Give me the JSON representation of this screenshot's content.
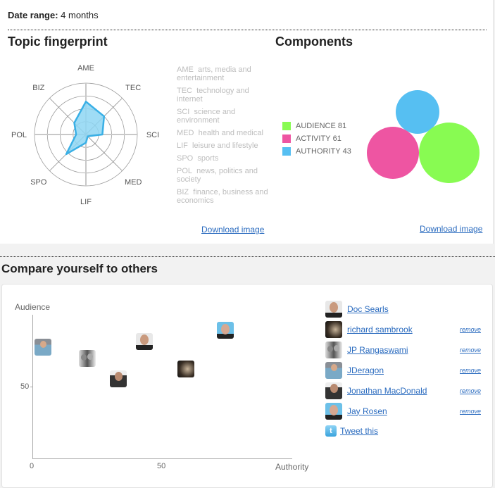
{
  "date_range": {
    "label": "Date range:",
    "value": "4 months"
  },
  "topic_fingerprint": {
    "title": "Topic fingerprint",
    "axes": [
      "AME",
      "TEC",
      "SCI",
      "MED",
      "LIF",
      "SPO",
      "POL",
      "BIZ"
    ],
    "legend": [
      {
        "code": "AME",
        "desc": "arts, media and entertainment"
      },
      {
        "code": "TEC",
        "desc": "technology and internet"
      },
      {
        "code": "SCI",
        "desc": "science and environment"
      },
      {
        "code": "MED",
        "desc": "health and medical"
      },
      {
        "code": "LIF",
        "desc": "leisure and lifestyle"
      },
      {
        "code": "SPO",
        "desc": "sports"
      },
      {
        "code": "POL",
        "desc": "news, politics and society"
      },
      {
        "code": "BIZ",
        "desc": "finance, business and economics"
      }
    ],
    "download_label": "Download image"
  },
  "components": {
    "title": "Components",
    "items": [
      {
        "label": "AUDIENCE",
        "value": "81",
        "color": "#88fb52"
      },
      {
        "label": "ACTIVITY",
        "value": "61",
        "color": "#ee55a2"
      },
      {
        "label": "AUTHORITY",
        "value": "43",
        "color": "#56bff2"
      }
    ],
    "download_label": "Download image"
  },
  "compare": {
    "title": "Compare yourself to others",
    "y_label": "Audience",
    "x_label": "Authority",
    "x_ticks": [
      "0",
      "50"
    ],
    "y_ticks": [
      "50"
    ],
    "people": [
      {
        "name": "Doc Searls",
        "removable": false,
        "remove_label": ""
      },
      {
        "name": "richard sambrook",
        "removable": true,
        "remove_label": "remove"
      },
      {
        "name": "JP Rangaswami",
        "removable": true,
        "remove_label": "remove"
      },
      {
        "name": "JDeragon",
        "removable": true,
        "remove_label": "remove"
      },
      {
        "name": "Jonathan MacDonald",
        "removable": true,
        "remove_label": "remove"
      },
      {
        "name": "Jay Rosen",
        "removable": true,
        "remove_label": "remove"
      }
    ],
    "tweet_label": "Tweet this"
  },
  "chart_data": [
    {
      "type": "radar",
      "title": "Topic fingerprint",
      "categories": [
        "AME",
        "TEC",
        "SCI",
        "MED",
        "LIF",
        "SPO",
        "POL",
        "BIZ"
      ],
      "values": [
        0.64,
        0.5,
        0.32,
        0.05,
        0.16,
        0.54,
        0.19,
        0.32
      ],
      "range": [
        0,
        1
      ],
      "rings": 4,
      "color": "#45b6e8"
    },
    {
      "type": "bubble",
      "title": "Components",
      "categories": [
        "AUDIENCE",
        "ACTIVITY",
        "AUTHORITY"
      ],
      "values": [
        81,
        61,
        43
      ],
      "colors": [
        "#88fb52",
        "#ee55a2",
        "#56bff2"
      ]
    },
    {
      "type": "scatter",
      "title": "Compare yourself to others",
      "xlabel": "Authority",
      "ylabel": "Audience",
      "xlim": [
        0,
        100
      ],
      "ylim": [
        0,
        100
      ],
      "points": [
        {
          "name": "Doc Searls",
          "x": 43,
          "y": 81
        },
        {
          "name": "richard sambrook",
          "x": 59,
          "y": 62
        },
        {
          "name": "JP Rangaswami",
          "x": 21,
          "y": 70
        },
        {
          "name": "JDeragon",
          "x": 4,
          "y": 77
        },
        {
          "name": "Jonathan MacDonald",
          "x": 33,
          "y": 55
        },
        {
          "name": "Jay Rosen",
          "x": 74,
          "y": 89
        }
      ]
    }
  ]
}
